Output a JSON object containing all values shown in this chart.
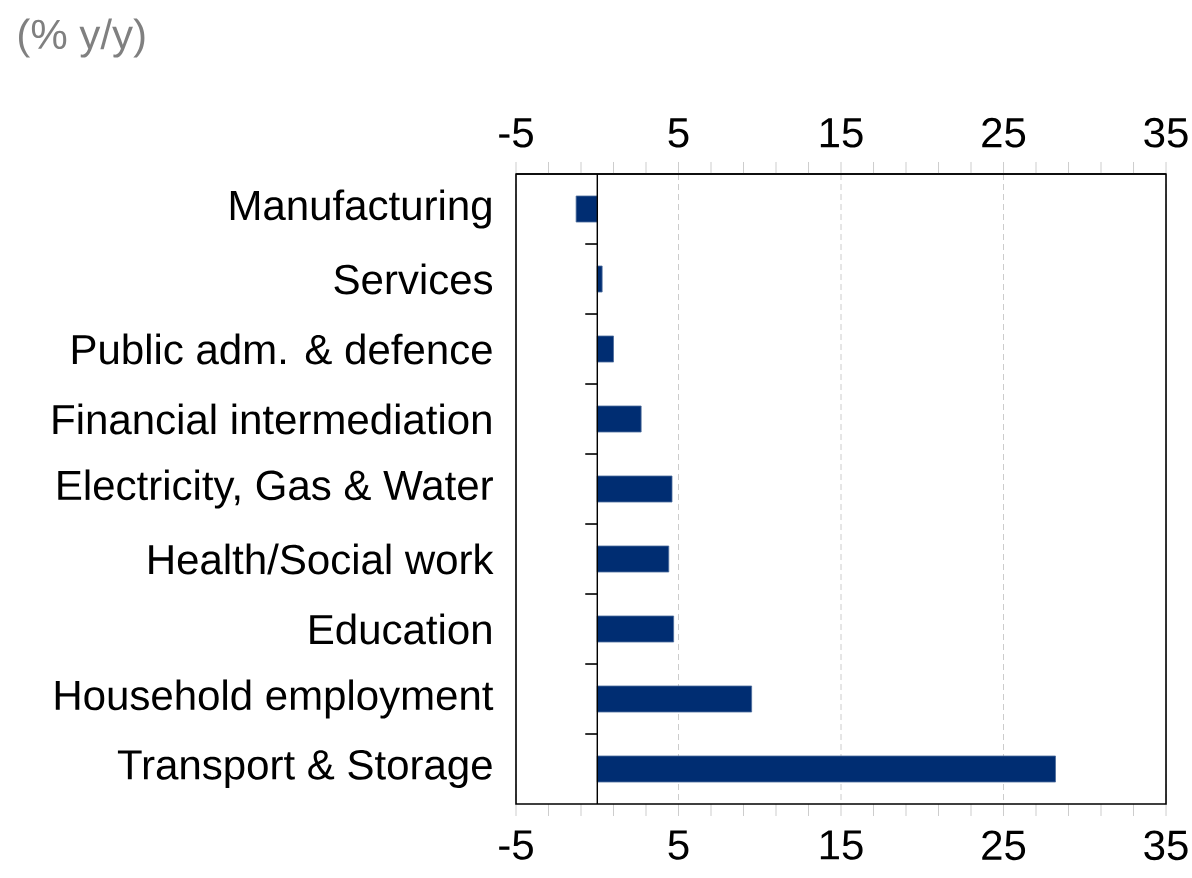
{
  "chart_data": {
    "type": "bar",
    "orientation": "horizontal",
    "subtitle": "(% y/y)",
    "categories": [
      "Manufacturing",
      "Services",
      "Public adm. & defence",
      "Financial intermediation",
      "Electricity, Gas & Water",
      "Health/Social work",
      "Education",
      "Household employment",
      "Transport & Storage"
    ],
    "values": [
      -1.3,
      0.3,
      1.0,
      2.7,
      4.6,
      4.4,
      4.7,
      9.5,
      28.2
    ],
    "color": "#002d72",
    "xlim": [
      -5,
      35
    ],
    "xticks": [
      -5,
      {
        "value": -3,
        "label": null
      },
      {
        "value": -1,
        "label": null
      },
      {
        "value": 1,
        "label": null
      },
      {
        "value": 3,
        "label": null
      },
      5,
      {
        "value": 7,
        "label": null
      },
      {
        "value": 9,
        "label": null
      },
      {
        "value": 11,
        "label": null
      },
      {
        "value": 13,
        "label": null
      },
      15,
      {
        "value": 17,
        "label": null
      },
      {
        "value": 19,
        "label": null
      },
      {
        "value": 21,
        "label": null
      },
      {
        "value": 23,
        "label": null
      },
      25,
      {
        "value": 27,
        "label": null
      },
      {
        "value": 29,
        "label": null
      },
      {
        "value": 31,
        "label": null
      },
      {
        "value": 33,
        "label": null
      },
      35
    ],
    "x2lim": [
      -5,
      35
    ],
    "x2ticks": [
      -5,
      {
        "value": -3,
        "label": null
      },
      {
        "value": -1,
        "label": null
      },
      {
        "value": 1,
        "label": null
      },
      {
        "value": 3,
        "label": null
      },
      5,
      {
        "value": 7,
        "label": null
      },
      {
        "value": 9,
        "label": null
      },
      {
        "value": 11,
        "label": null
      },
      {
        "value": 13,
        "label": null
      },
      15,
      {
        "value": 17,
        "label": null
      },
      {
        "value": 19,
        "label": null
      },
      {
        "value": 21,
        "label": null
      },
      {
        "value": 23,
        "label": null
      },
      25,
      {
        "value": 27,
        "label": null
      },
      {
        "value": 29,
        "label": null
      },
      {
        "value": 31,
        "label": null
      },
      {
        "value": 33,
        "label": null
      },
      35
    ],
    "grid": "x"
  }
}
